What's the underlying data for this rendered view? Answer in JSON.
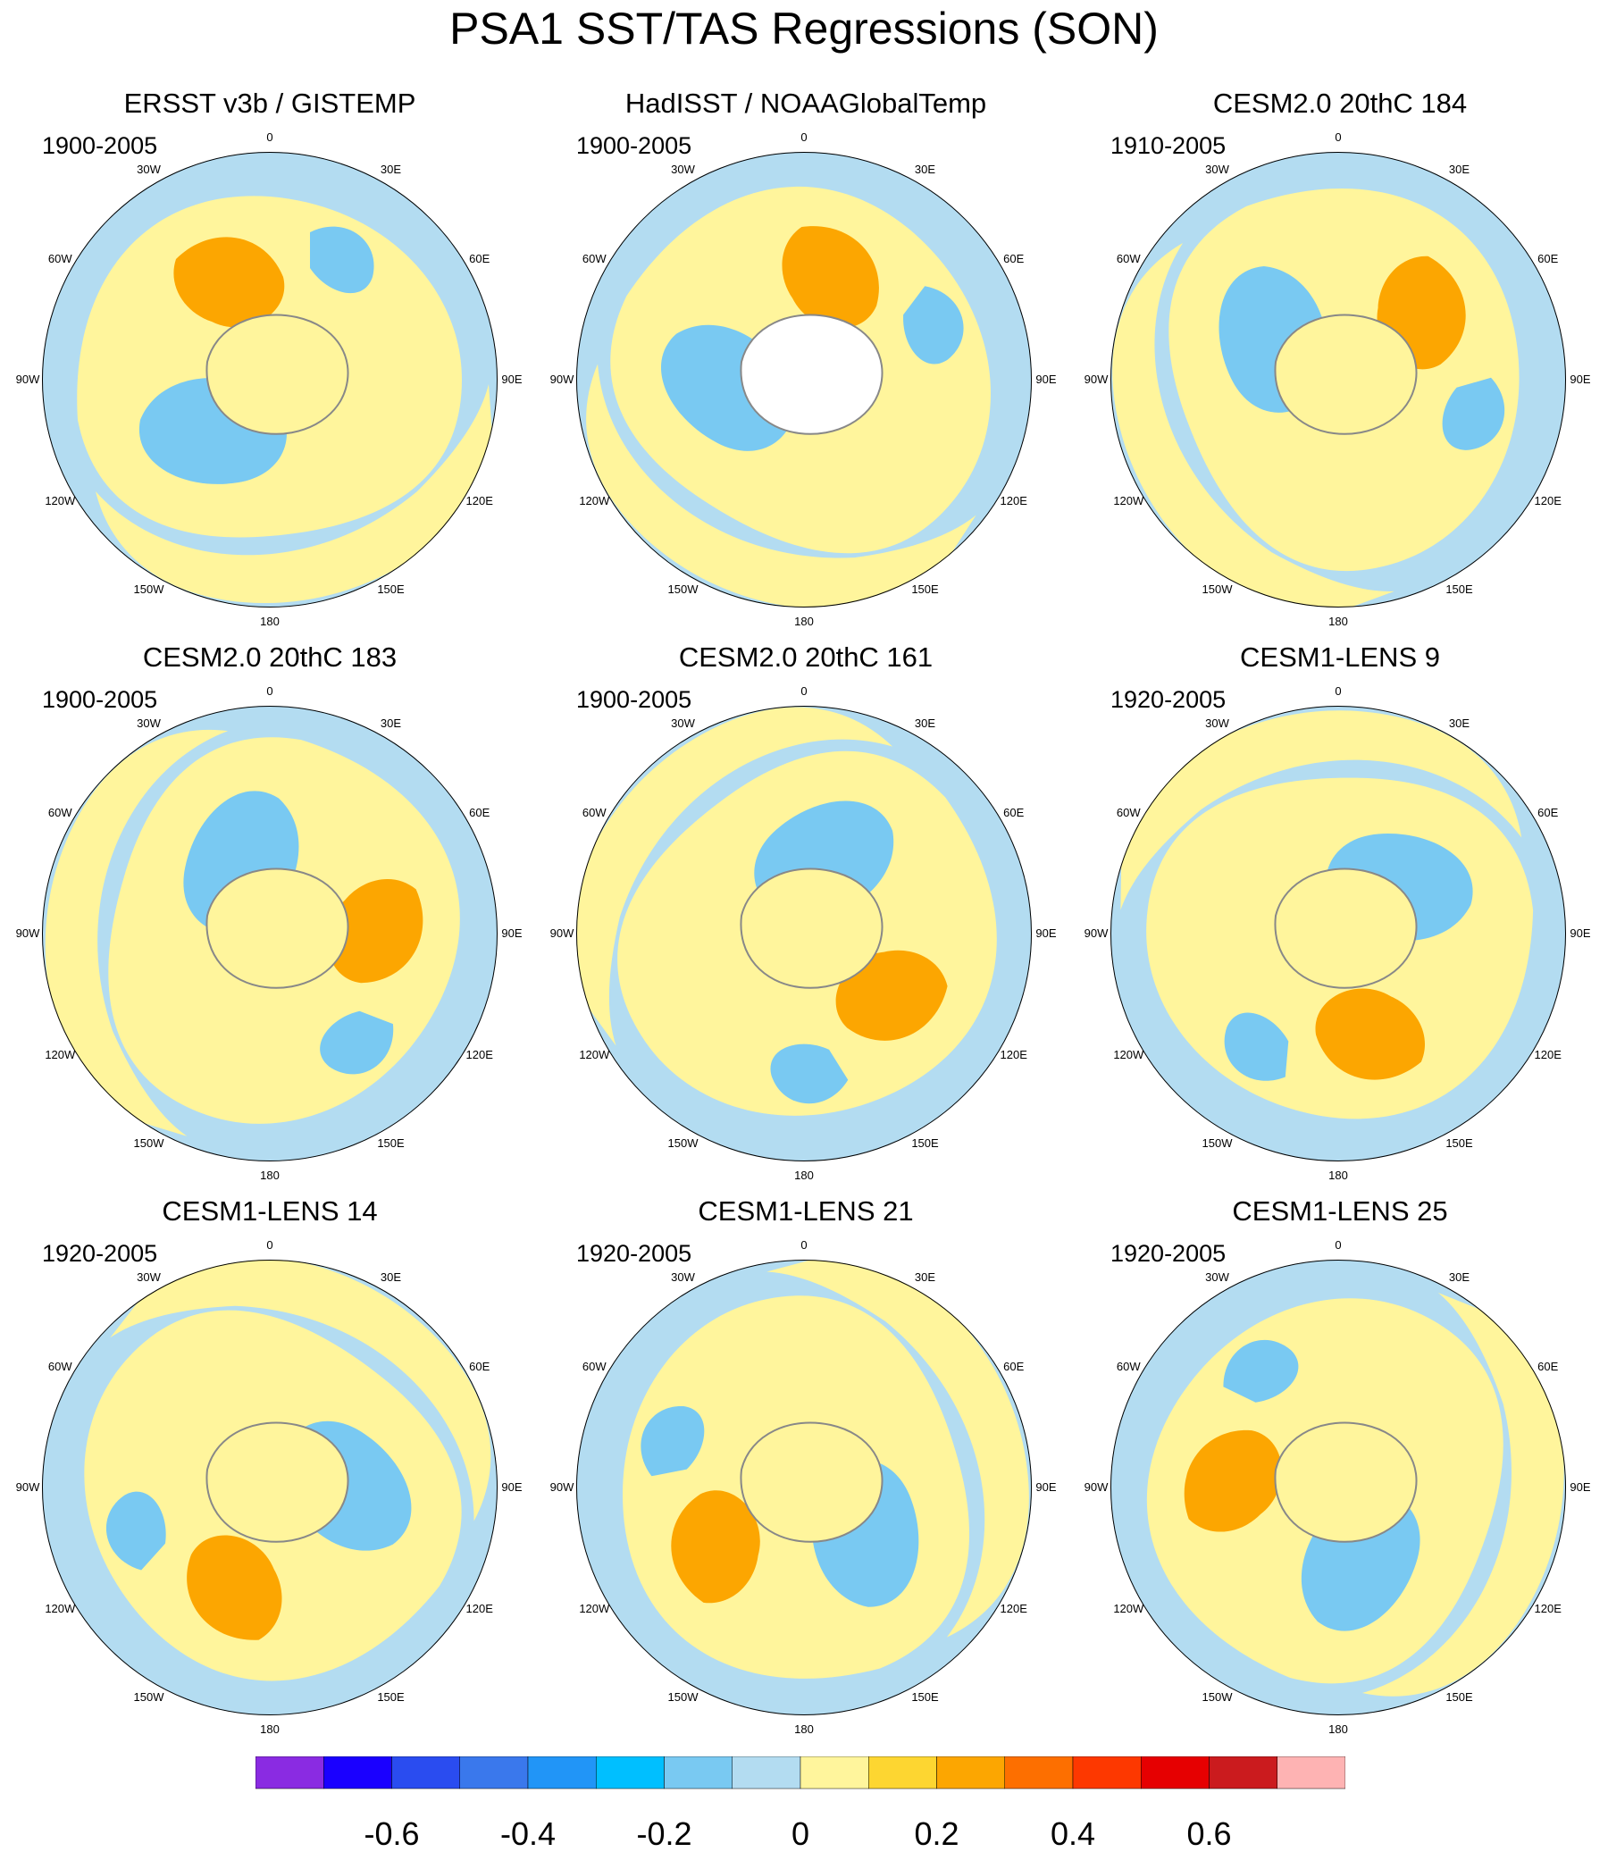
{
  "title": "PSA1 SST/TAS Regressions (SON)",
  "lon_labels": [
    "0",
    "30E",
    "60E",
    "90E",
    "120E",
    "150E",
    "180",
    "150W",
    "120W",
    "90W",
    "60W",
    "30W"
  ],
  "panels": [
    {
      "title": "ERSST v3b / GISTEMP",
      "period": "1900-2005"
    },
    {
      "title": "HadISST / NOAAGlobalTemp",
      "period": "1900-2005"
    },
    {
      "title": "CESM2.0 20thC 184",
      "period": "1910-2005"
    },
    {
      "title": "CESM2.0 20thC 183",
      "period": "1900-2005"
    },
    {
      "title": "CESM2.0 20thC 161",
      "period": "1900-2005"
    },
    {
      "title": "CESM1-LENS 9",
      "period": "1920-2005"
    },
    {
      "title": "CESM1-LENS 14",
      "period": "1920-2005"
    },
    {
      "title": "CESM1-LENS 21",
      "period": "1920-2005"
    },
    {
      "title": "CESM1-LENS 25",
      "period": "1920-2005"
    }
  ],
  "colorbar": {
    "colors": [
      "#8a2be2",
      "#1a00ff",
      "#2a4cf0",
      "#3a78ec",
      "#2195f7",
      "#00bfff",
      "#79c9f2",
      "#b3dcf1",
      "#fff59c",
      "#fdd631",
      "#fca601",
      "#fd6f00",
      "#fd3800",
      "#e60001",
      "#cb1b1e",
      "#feb3b3"
    ],
    "labels": [
      "-0.6",
      "-0.4",
      "-0.2",
      "0",
      "0.2",
      "0.4",
      "0.6"
    ],
    "label_values": [
      -0.6,
      -0.4,
      -0.2,
      0,
      0.2,
      0.4,
      0.6
    ],
    "levels": [
      -0.7,
      -0.6,
      -0.5,
      -0.4,
      -0.3,
      -0.2,
      -0.1,
      0,
      0.1,
      0.2,
      0.3,
      0.4,
      0.5,
      0.6,
      0.7
    ]
  },
  "colors": {
    "land_outline": "#888888",
    "base": "#b3dcf1",
    "warm": "#fff59c"
  }
}
